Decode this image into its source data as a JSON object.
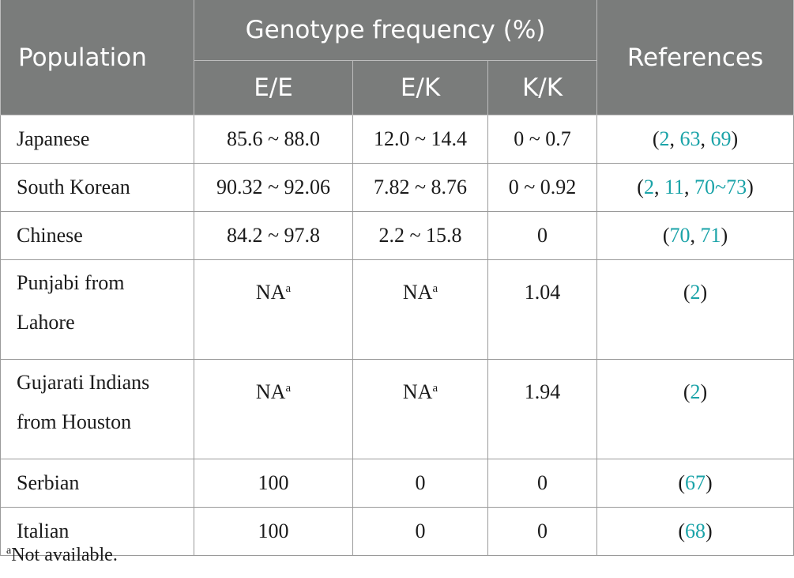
{
  "header": {
    "population": "Population",
    "genotype_frequency": "Genotype frequency (%)",
    "references": "References",
    "sub": [
      "E/E",
      "E/K",
      "K/K"
    ]
  },
  "rows": [
    {
      "population": "Japanese",
      "ee": "85.6 ~ 88.0",
      "ek": "12.0 ~ 14.4",
      "kk": "0 ~ 0.7",
      "refs": [
        "2",
        "63",
        "69"
      ]
    },
    {
      "population": "South Korean",
      "ee": "90.32 ~ 92.06",
      "ek": "7.82 ~ 8.76",
      "kk": "0 ~ 0.92",
      "refs": [
        "2",
        "11",
        "70~73"
      ]
    },
    {
      "population": "Chinese",
      "ee": "84.2 ~ 97.8",
      "ek": "2.2 ~ 15.8",
      "kk": "0",
      "refs": [
        "70",
        "71"
      ]
    },
    {
      "population_line1": "Punjabi from",
      "population_line2": "Lahore",
      "ee": "NA",
      "ek": "NA",
      "kk": "1.04",
      "refs": [
        "2"
      ]
    },
    {
      "population_line1": "Gujarati Indians",
      "population_line2": "from Houston",
      "ee": "NA",
      "ek": "NA",
      "kk": "1.94",
      "refs": [
        "2"
      ]
    },
    {
      "population": "Serbian",
      "ee": "100",
      "ek": "0",
      "kk": "0",
      "refs": [
        "67"
      ]
    },
    {
      "population": "Italian",
      "ee": "100",
      "ek": "0",
      "kk": "0",
      "refs": [
        "68"
      ]
    }
  ],
  "footnote": {
    "marker": "a",
    "text": "Not available."
  },
  "colors": {
    "header_bg": "#7a7c7b",
    "link": "#1aa3a8"
  }
}
